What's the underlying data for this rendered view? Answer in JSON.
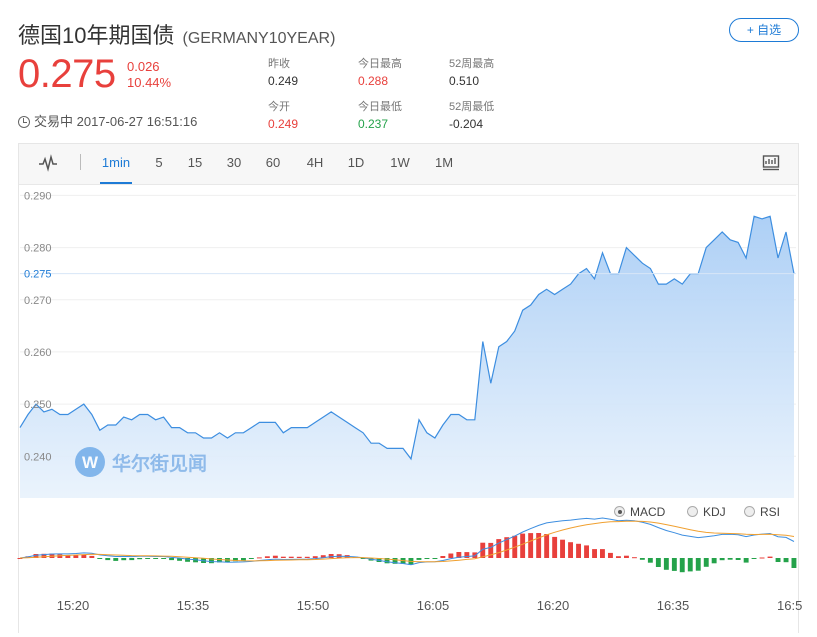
{
  "header": {
    "title": "德国10年期国债",
    "code": "(GERMANY10YEAR)",
    "fav_label": "+ 自选",
    "price": "0.275",
    "change": "0.026",
    "change_pct": "10.44%",
    "status": "交易中 2017-06-27 16:51:16"
  },
  "stats": [
    {
      "label": "昨收",
      "value": "0.249",
      "color": "#333333"
    },
    {
      "label": "今日最高",
      "value": "0.288",
      "color": "#e8403c"
    },
    {
      "label": "52周最高",
      "value": "0.510",
      "color": "#333333"
    },
    {
      "label": "今开",
      "value": "0.249",
      "color": "#e8403c"
    },
    {
      "label": "今日最低",
      "value": "0.237",
      "color": "#24a24a"
    },
    {
      "label": "52周最低",
      "value": "-0.204",
      "color": "#333333"
    }
  ],
  "tabs": [
    "1min",
    "5",
    "15",
    "30",
    "60",
    "4H",
    "1D",
    "1W",
    "1M"
  ],
  "active_tab": "1min",
  "indicators": [
    "MACD",
    "KDJ",
    "RSI"
  ],
  "active_indicator": "MACD",
  "watermark": "华尔街见闻",
  "colors": {
    "up": "#e8403c",
    "down": "#24a24a",
    "accent": "#1e7bd6",
    "line": "#3d8ee0"
  },
  "chart_data": {
    "type": "area",
    "current_value": 0.275,
    "current_label": "0.275",
    "y_ticks": [
      0.29,
      0.28,
      0.27,
      0.26,
      0.25,
      0.24
    ],
    "y_tick_labels": [
      "0.290",
      "0.280",
      "0.270",
      "0.260",
      "0.250",
      "0.240"
    ],
    "ylim": [
      0.232,
      0.292
    ],
    "x_tick_labels": [
      "15:20",
      "15:35",
      "15:50",
      "16:05",
      "16:20",
      "16:35",
      "16:5"
    ],
    "series": [
      {
        "values": [
          0.2455,
          0.248,
          0.25,
          0.2485,
          0.249,
          0.248,
          0.248,
          0.249,
          0.25,
          0.248,
          0.245,
          0.246,
          0.246,
          0.2475,
          0.247,
          0.248,
          0.248,
          0.247,
          0.2475,
          0.2455,
          0.2455,
          0.2445,
          0.2445,
          0.2435,
          0.2435,
          0.2445,
          0.2435,
          0.2445,
          0.2445,
          0.2455,
          0.2465,
          0.2465,
          0.2465,
          0.2445,
          0.2455,
          0.2455,
          0.2455,
          0.2465,
          0.2475,
          0.2485,
          0.2475,
          0.2465,
          0.2455,
          0.2445,
          0.2425,
          0.2425,
          0.2415,
          0.2415,
          0.2415,
          0.2395,
          0.247,
          0.2445,
          0.2435,
          0.246,
          0.248,
          0.248,
          0.247,
          0.247,
          0.262,
          0.254,
          0.261,
          0.262,
          0.264,
          0.268,
          0.269,
          0.271,
          0.272,
          0.271,
          0.272,
          0.273,
          0.275,
          0.276,
          0.274,
          0.279,
          0.275,
          0.275,
          0.28,
          0.2785,
          0.277,
          0.276,
          0.273,
          0.273,
          0.274,
          0.273,
          0.275,
          0.275,
          0.28,
          0.2815,
          0.283,
          0.2815,
          0.281,
          0.278,
          0.286,
          0.2855,
          0.286,
          0.278,
          0.283,
          0.275
        ]
      }
    ]
  }
}
